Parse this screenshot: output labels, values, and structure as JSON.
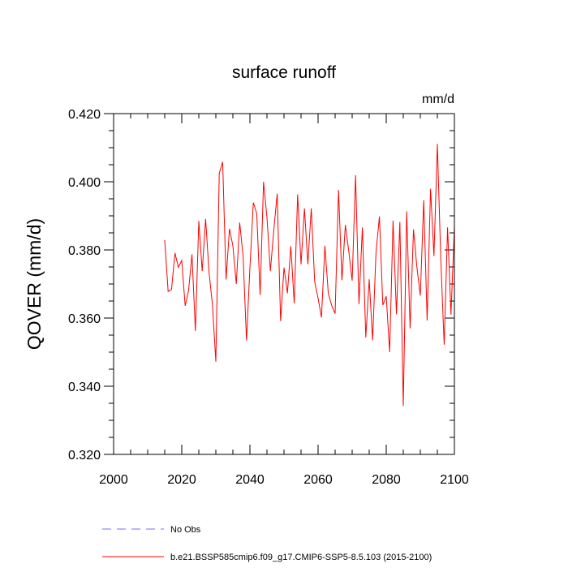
{
  "chart_data": {
    "type": "line",
    "title": "surface runoff",
    "units": "mm/d",
    "xlabel": "",
    "ylabel": "QOVER  (mm/d)",
    "xlim": [
      2000,
      2100
    ],
    "ylim": [
      0.32,
      0.42
    ],
    "xticks": [
      2000,
      2020,
      2040,
      2060,
      2080,
      2100
    ],
    "xtick_labels": [
      "2000",
      "2020",
      "2040",
      "2060",
      "2080",
      "2100"
    ],
    "yticks": [
      0.32,
      0.34,
      0.36,
      0.38,
      0.4,
      0.42
    ],
    "ytick_labels": [
      "0.320",
      "0.340",
      "0.360",
      "0.380",
      "0.400",
      "0.420"
    ],
    "series": [
      {
        "name": "b.e21.BSSP585cmip6.f09_g17.CMIP6-SSP5-8.5.103 (2015-2100)",
        "color": "#ff0000",
        "style": "solid",
        "x": [
          2015,
          2016,
          2017,
          2018,
          2019,
          2020,
          2021,
          2022,
          2023,
          2024,
          2025,
          2026,
          2027,
          2028,
          2029,
          2030,
          2031,
          2032,
          2033,
          2034,
          2035,
          2036,
          2037,
          2038,
          2039,
          2040,
          2041,
          2042,
          2043,
          2044,
          2045,
          2046,
          2047,
          2048,
          2049,
          2050,
          2051,
          2052,
          2053,
          2054,
          2055,
          2056,
          2057,
          2058,
          2059,
          2060,
          2061,
          2062,
          2063,
          2064,
          2065,
          2066,
          2067,
          2068,
          2069,
          2070,
          2071,
          2072,
          2073,
          2074,
          2075,
          2076,
          2077,
          2078,
          2079,
          2080,
          2081,
          2082,
          2083,
          2084,
          2085,
          2086,
          2087,
          2088,
          2089,
          2090,
          2091,
          2092,
          2093,
          2094,
          2095,
          2096,
          2097,
          2098,
          2099,
          2100
        ],
        "values": [
          0.3829,
          0.3678,
          0.3684,
          0.3791,
          0.3749,
          0.3769,
          0.3636,
          0.3681,
          0.3787,
          0.3562,
          0.3885,
          0.3738,
          0.3891,
          0.3735,
          0.364,
          0.3472,
          0.4025,
          0.4058,
          0.3713,
          0.3862,
          0.3812,
          0.37,
          0.388,
          0.3781,
          0.3534,
          0.3748,
          0.3939,
          0.3907,
          0.3668,
          0.4,
          0.3895,
          0.3738,
          0.3858,
          0.3965,
          0.3591,
          0.3748,
          0.3673,
          0.3811,
          0.3643,
          0.3963,
          0.3758,
          0.3922,
          0.3758,
          0.3922,
          0.3707,
          0.3658,
          0.3602,
          0.3812,
          0.3672,
          0.3637,
          0.3613,
          0.3976,
          0.3711,
          0.3873,
          0.3797,
          0.371,
          0.4019,
          0.3641,
          0.3866,
          0.3543,
          0.3714,
          0.3535,
          0.3793,
          0.3898,
          0.3638,
          0.3664,
          0.35,
          0.3886,
          0.3611,
          0.3882,
          0.3342,
          0.3913,
          0.357,
          0.386,
          0.3749,
          0.3666,
          0.3946,
          0.3593,
          0.3979,
          0.3782,
          0.4111,
          0.3774,
          0.3522,
          0.3866,
          0.361,
          0.3869
        ]
      },
      {
        "name": "No Obs",
        "color": "#6f6fff",
        "style": "dashed",
        "x": [],
        "values": []
      }
    ],
    "legend": [
      {
        "label": "No Obs",
        "color": "#6f6fff",
        "style": "dashed"
      },
      {
        "label": "b.e21.BSSP585cmip6.f09_g17.CMIP6-SSP5-8.5.103 (2015-2100)",
        "color": "#ff0000",
        "style": "solid"
      }
    ]
  }
}
